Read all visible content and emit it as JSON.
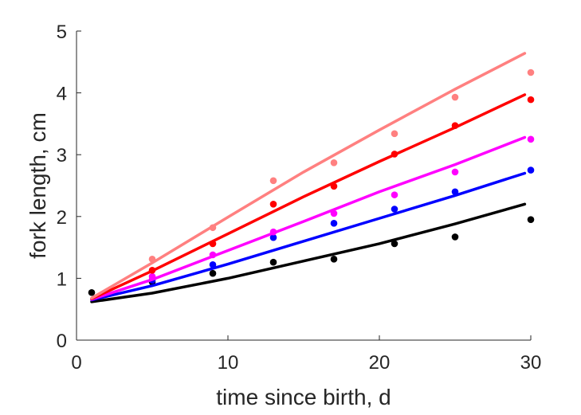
{
  "chart_data": {
    "type": "line",
    "xlabel": "time since birth, d",
    "ylabel": "fork length, cm",
    "xlim": [
      0,
      30
    ],
    "ylim": [
      0,
      5
    ],
    "xticks": [
      0,
      10,
      20,
      30
    ],
    "yticks": [
      0,
      1,
      2,
      3,
      4,
      5
    ],
    "grid": false,
    "legend": "none",
    "series": [
      {
        "color": "#000000",
        "points": {
          "x": [
            1,
            5,
            9,
            13,
            17,
            21,
            25,
            30
          ],
          "y": [
            0.77,
            0.94,
            1.08,
            1.26,
            1.31,
            1.56,
            1.67,
            1.95
          ]
        },
        "curve": {
          "x": [
            1,
            5,
            10,
            15,
            20,
            25,
            29.6
          ],
          "y": [
            0.62,
            0.76,
            1.0,
            1.28,
            1.56,
            1.88,
            2.2
          ]
        }
      },
      {
        "color": "#0000ff",
        "points": {
          "x": [
            5,
            9,
            13,
            17,
            21,
            25,
            30
          ],
          "y": [
            0.97,
            1.22,
            1.66,
            1.89,
            2.12,
            2.4,
            2.75
          ]
        },
        "curve": {
          "x": [
            1,
            5,
            10,
            15,
            20,
            25,
            29.6
          ],
          "y": [
            0.65,
            0.88,
            1.23,
            1.6,
            1.97,
            2.34,
            2.7
          ]
        }
      },
      {
        "color": "#ff00ff",
        "points": {
          "x": [
            5,
            9,
            13,
            17,
            21,
            25,
            30
          ],
          "y": [
            1.03,
            1.38,
            1.75,
            2.05,
            2.35,
            2.72,
            3.25
          ]
        },
        "curve": {
          "x": [
            1,
            5,
            10,
            15,
            20,
            25,
            29.6
          ],
          "y": [
            0.66,
            0.98,
            1.45,
            1.92,
            2.4,
            2.84,
            3.28
          ]
        }
      },
      {
        "color": "#ff0000",
        "points": {
          "x": [
            5,
            9,
            13,
            17,
            21,
            25,
            30
          ],
          "y": [
            1.13,
            1.56,
            2.2,
            2.49,
            3.01,
            3.47,
            3.89
          ]
        },
        "curve": {
          "x": [
            1,
            5,
            10,
            15,
            20,
            25,
            29.6
          ],
          "y": [
            0.67,
            1.12,
            1.72,
            2.32,
            2.89,
            3.44,
            3.97
          ]
        }
      },
      {
        "color": "#ff8080",
        "points": {
          "x": [
            5,
            9,
            13,
            17,
            21,
            25,
            30
          ],
          "y": [
            1.31,
            1.82,
            2.58,
            2.87,
            3.34,
            3.93,
            4.33
          ]
        },
        "curve": {
          "x": [
            1,
            5,
            10,
            15,
            20,
            25,
            29.6
          ],
          "y": [
            0.68,
            1.25,
            1.99,
            2.72,
            3.4,
            4.06,
            4.64
          ]
        }
      }
    ]
  }
}
